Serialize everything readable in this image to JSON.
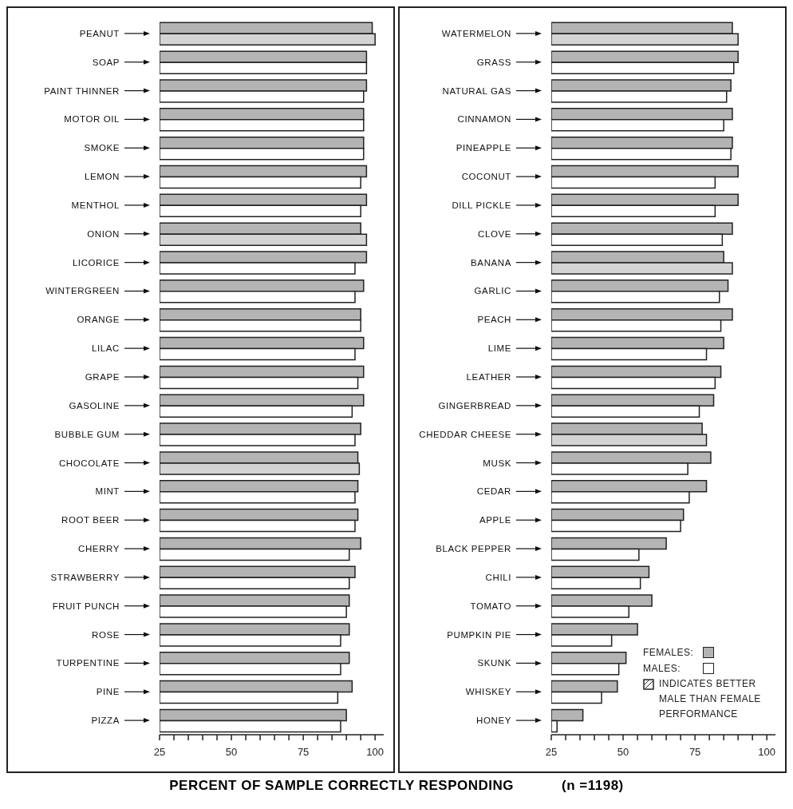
{
  "chart_data": [
    {
      "type": "bar",
      "orientation": "horizontal",
      "xlabel": "PERCENT OF SAMPLE CORRECTLY RESPONDING",
      "annotations": [
        "(n =1198)"
      ],
      "categories": [
        "PEANUT",
        "SOAP",
        "PAINT THINNER",
        "MOTOR OIL",
        "SMOKE",
        "LEMON",
        "MENTHOL",
        "ONION",
        "LICORICE",
        "WINTERGREEN",
        "ORANGE",
        "LILAC",
        "GRAPE",
        "GASOLINE",
        "BUBBLE GUM",
        "CHOCOLATE",
        "MINT",
        "ROOT BEER",
        "CHERRY",
        "STRAWBERRY",
        "FRUIT PUNCH",
        "ROSE",
        "TURPENTINE",
        "PINE",
        "PIZZA"
      ],
      "series": [
        {
          "color": "#b4b4b4",
          "values": [
            99,
            97,
            97,
            96,
            96,
            97,
            97,
            95,
            97,
            96,
            95,
            96,
            96,
            96,
            95,
            94,
            94,
            94,
            95,
            93,
            91,
            91,
            91,
            92,
            90
          ]
        },
        {
          "color": "#ffffff",
          "colors": [
            "#d4d4d4",
            "#ffffff",
            "#ffffff",
            "#ffffff",
            "#ffffff",
            "#ffffff",
            "#ffffff",
            "#d4d4d4",
            "#ffffff",
            "#ffffff",
            "#ffffff",
            "#ffffff",
            "#ffffff",
            "#ffffff",
            "#ffffff",
            "#d4d4d4",
            "#ffffff",
            "#ffffff",
            "#ffffff",
            "#ffffff",
            "#ffffff",
            "#ffffff",
            "#ffffff",
            "#ffffff",
            "#ffffff"
          ],
          "values": [
            100,
            97,
            96,
            96,
            96,
            95,
            95,
            97,
            93,
            93,
            95,
            93,
            94,
            92,
            93,
            94.5,
            93,
            93,
            91,
            91,
            90,
            88,
            88,
            87,
            88
          ]
        }
      ],
      "xlim": [
        25,
        103
      ],
      "xticks": [
        25,
        {
          "value": 30,
          "label": null
        },
        {
          "value": 35,
          "label": null
        },
        {
          "value": 40,
          "label": null
        },
        {
          "value": 45,
          "label": null
        },
        50,
        {
          "value": 55,
          "label": null
        },
        {
          "value": 60,
          "label": null
        },
        {
          "value": 65,
          "label": null
        },
        {
          "value": 70,
          "label": null
        },
        75,
        {
          "value": 80,
          "label": null
        },
        {
          "value": 85,
          "label": null
        },
        {
          "value": 90,
          "label": null
        },
        {
          "value": 95,
          "label": null
        },
        100
      ]
    },
    {
      "type": "bar",
      "orientation": "horizontal",
      "legend": "bottom right",
      "annotations": [
        "INDICATES BETTER MALE THAN FEMALE PERFORMANCE"
      ],
      "categories": [
        "WATERMELON",
        "GRASS",
        "NATURAL GAS",
        "CINNAMON",
        "PINEAPPLE",
        "COCONUT",
        "DILL PICKLE",
        "CLOVE",
        "BANANA",
        "GARLIC",
        "PEACH",
        "LIME",
        "LEATHER",
        "GINGERBREAD",
        "CHEDDAR CHEESE",
        "MUSK",
        "CEDAR",
        "APPLE",
        "BLACK PEPPER",
        "CHILI",
        "TOMATO",
        "PUMPKIN PIE",
        "SKUNK",
        "WHISKEY",
        "HONEY"
      ],
      "series": [
        {
          "name": "FEMALES:",
          "color": "#b4b4b4",
          "values": [
            88,
            90,
            87.5,
            88,
            88,
            90,
            90,
            88,
            85,
            86.5,
            88,
            85,
            84,
            81.5,
            77.5,
            80.5,
            79,
            71,
            65,
            59,
            60,
            55,
            51,
            48,
            36
          ]
        },
        {
          "name": "MALES:",
          "color": "#ffffff",
          "colors": [
            "#d4d4d4",
            "#ffffff",
            "#ffffff",
            "#ffffff",
            "#ffffff",
            "#ffffff",
            "#ffffff",
            "#ffffff",
            "#d4d4d4",
            "#ffffff",
            "#ffffff",
            "#ffffff",
            "#ffffff",
            "#ffffff",
            "#d4d4d4",
            "#ffffff",
            "#ffffff",
            "#ffffff",
            "#ffffff",
            "#ffffff",
            "#ffffff",
            "#ffffff",
            "#ffffff",
            "#ffffff",
            "#ffffff"
          ],
          "values": [
            90,
            88.5,
            86,
            85,
            87.5,
            82,
            82,
            84.5,
            88,
            83.5,
            84,
            79,
            82,
            76.5,
            79,
            72.5,
            73,
            70,
            55.5,
            56,
            52,
            46,
            48.5,
            42.5,
            27
          ]
        }
      ],
      "xlim": [
        25,
        103
      ],
      "xticks": [
        25,
        {
          "value": 30,
          "label": null
        },
        {
          "value": 35,
          "label": null
        },
        {
          "value": 40,
          "label": null
        },
        {
          "value": 45,
          "label": null
        },
        50,
        {
          "value": 55,
          "label": null
        },
        {
          "value": 60,
          "label": null
        },
        {
          "value": 65,
          "label": null
        },
        {
          "value": 70,
          "label": null
        },
        75,
        {
          "value": 80,
          "label": null
        },
        {
          "value": 85,
          "label": null
        },
        {
          "value": 90,
          "label": null
        },
        {
          "value": 95,
          "label": null
        },
        100
      ]
    }
  ]
}
